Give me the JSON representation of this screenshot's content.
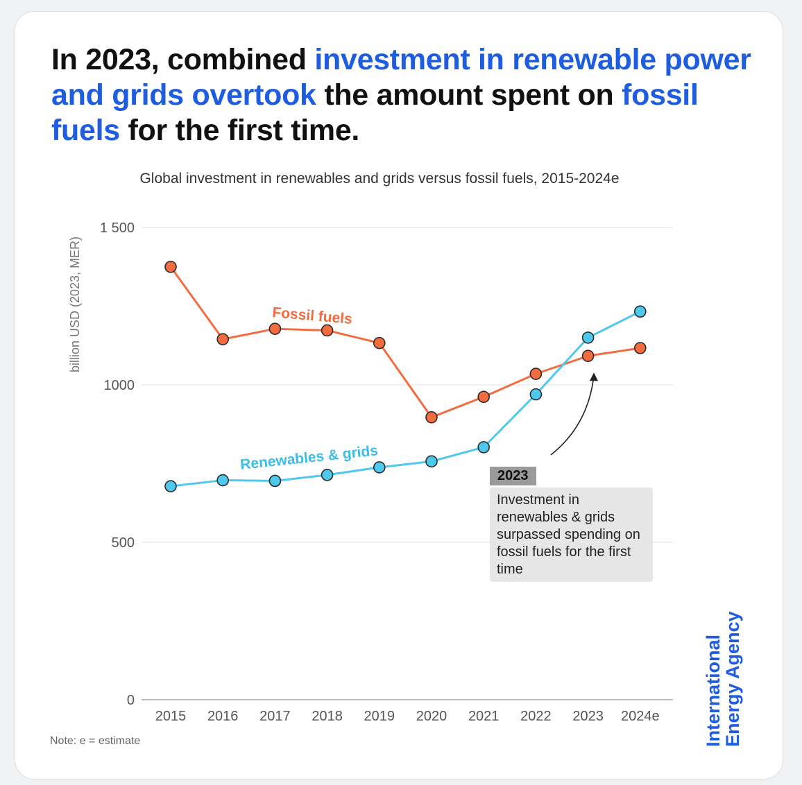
{
  "headline": {
    "part1": "In 2023, combined ",
    "part2": "investment in renewable power and grids overtook",
    "part3": " the amount spent on ",
    "part4": "fossil fuels",
    "part5": " for the first time."
  },
  "colors": {
    "highlight": "#1f5de0",
    "fossil": "#f26c3f",
    "renewables": "#4fc8ee",
    "brand": "#1f5de0"
  },
  "chart_data": {
    "type": "line",
    "title": "Global investment in renewables and grids versus fossil fuels, 2015-2024e",
    "ylabel": "billion USD (2023, MER)",
    "xlabel": "",
    "ylim": [
      0,
      1500
    ],
    "yticks": [
      "0",
      "500",
      "1000",
      "1 500"
    ],
    "ytick_values": [
      0,
      500,
      1000,
      1500
    ],
    "categories": [
      "2015",
      "2016",
      "2017",
      "2018",
      "2019",
      "2020",
      "2021",
      "2022",
      "2023",
      "2024e"
    ],
    "series": [
      {
        "name": "Fossil fuels",
        "color": "#f26c3f",
        "values": [
          1375,
          1145,
          1178,
          1173,
          1133,
          897,
          962,
          1035,
          1092,
          1117
        ]
      },
      {
        "name": "Renewables & grids",
        "color": "#4fc8ee",
        "values": [
          678,
          697,
          695,
          714,
          738,
          757,
          802,
          970,
          1150,
          1233
        ]
      }
    ],
    "grid": "horizontal",
    "annotation": {
      "tag": "2023",
      "text": "Investment in renewables & grids surpassed spending on fossil fuels for the first time"
    }
  },
  "note": "Note: e = estimate",
  "brand": {
    "line1": "International",
    "line2": "Energy Agency"
  }
}
